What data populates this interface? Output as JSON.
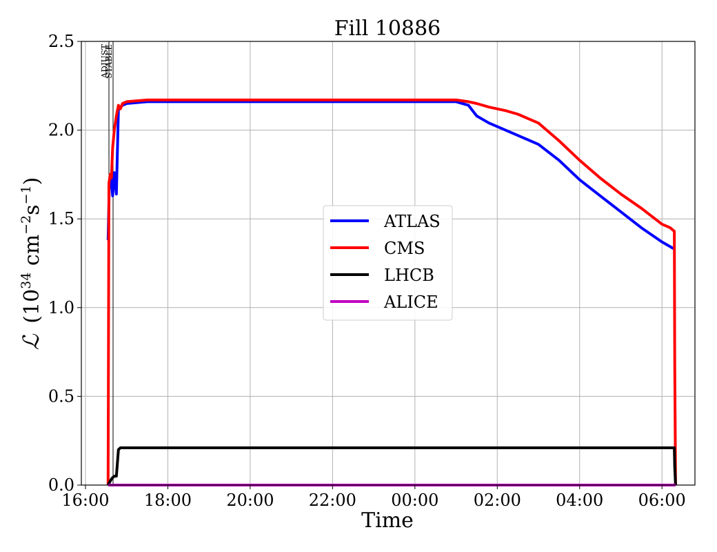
{
  "chart_data": {
    "type": "line",
    "title": "Fill 10886",
    "xlabel": "Time",
    "ylabel": "ℒ (10³⁴ cm⁻²s⁻¹)",
    "ylabel_parts": {
      "base": "(10",
      "exp1": "34",
      "mid1": " cm",
      "exp2": "−2",
      "mid2": "s",
      "exp3": "−1",
      "end": ")"
    },
    "x_unit": "hours since 16:00 (axis labeled by clock time)",
    "xlim": [
      -0.1,
      14.8
    ],
    "ylim": [
      0,
      2.5
    ],
    "x_ticks": [
      {
        "value": 0,
        "label": "16:00"
      },
      {
        "value": 2,
        "label": "18:00"
      },
      {
        "value": 4,
        "label": "20:00"
      },
      {
        "value": 6,
        "label": "22:00"
      },
      {
        "value": 8,
        "label": "00:00"
      },
      {
        "value": 10,
        "label": "02:00"
      },
      {
        "value": 12,
        "label": "04:00"
      },
      {
        "value": 14,
        "label": "06:00"
      }
    ],
    "y_ticks": [
      {
        "value": 0,
        "label": "0.0"
      },
      {
        "value": 0.5,
        "label": "0.5"
      },
      {
        "value": 1.0,
        "label": "1.0"
      },
      {
        "value": 1.5,
        "label": "1.5"
      },
      {
        "value": 2.0,
        "label": "2.0"
      },
      {
        "value": 2.5,
        "label": "2.5"
      }
    ],
    "grid": true,
    "legend_position": "center-right",
    "markers": [
      {
        "x": 0.57,
        "label": "ADJUST"
      },
      {
        "x": 0.67,
        "label": "STABLE"
      }
    ],
    "series": [
      {
        "name": "ATLAS",
        "color": "#0000ff",
        "x": [
          0.55,
          0.58,
          0.6,
          0.63,
          0.66,
          0.7,
          0.75,
          0.8,
          0.85,
          0.9,
          1.0,
          1.5,
          2.0,
          3.0,
          4.0,
          5.0,
          6.0,
          7.0,
          8.0,
          8.7,
          9.0,
          9.3,
          9.5,
          9.8,
          10.2,
          10.5,
          11.0,
          11.5,
          12.0,
          12.5,
          13.0,
          13.5,
          14.0,
          14.3
        ],
        "y": [
          1.38,
          1.7,
          1.75,
          1.72,
          1.63,
          1.76,
          1.64,
          2.12,
          2.13,
          2.14,
          2.15,
          2.16,
          2.16,
          2.16,
          2.16,
          2.16,
          2.16,
          2.16,
          2.16,
          2.16,
          2.16,
          2.14,
          2.08,
          2.04,
          2.0,
          1.97,
          1.92,
          1.83,
          1.72,
          1.63,
          1.54,
          1.45,
          1.37,
          1.33
        ]
      },
      {
        "name": "CMS",
        "color": "#ff0000",
        "x": [
          0.55,
          0.57,
          0.6,
          0.63,
          0.66,
          0.7,
          0.75,
          0.8,
          0.85,
          0.9,
          1.0,
          1.5,
          2.0,
          3.0,
          4.0,
          5.0,
          6.0,
          7.0,
          8.0,
          8.7,
          9.0,
          9.3,
          9.5,
          9.8,
          10.2,
          10.5,
          11.0,
          11.5,
          12.0,
          12.5,
          13.0,
          13.5,
          14.0,
          14.2,
          14.3,
          14.31,
          14.33
        ],
        "y": [
          0.0,
          1.7,
          1.75,
          1.73,
          1.9,
          2.0,
          2.08,
          2.14,
          2.12,
          2.15,
          2.16,
          2.17,
          2.17,
          2.17,
          2.17,
          2.17,
          2.17,
          2.17,
          2.17,
          2.17,
          2.17,
          2.16,
          2.15,
          2.13,
          2.11,
          2.09,
          2.04,
          1.94,
          1.83,
          1.73,
          1.64,
          1.56,
          1.47,
          1.45,
          1.43,
          0.7,
          0.0
        ]
      },
      {
        "name": "LHCB",
        "color": "#000000",
        "x": [
          0.55,
          0.62,
          0.65,
          0.7,
          0.75,
          0.8,
          0.85,
          1.0,
          2.0,
          4.0,
          6.0,
          8.0,
          10.0,
          12.0,
          14.0,
          14.3,
          14.31,
          14.33
        ],
        "y": [
          0.0,
          0.03,
          0.04,
          0.05,
          0.05,
          0.2,
          0.21,
          0.21,
          0.21,
          0.21,
          0.21,
          0.21,
          0.21,
          0.21,
          0.21,
          0.21,
          0.1,
          0.0
        ]
      },
      {
        "name": "ALICE",
        "color": "#bf00bf",
        "x": [
          0.55,
          14.33
        ],
        "y": [
          0.0,
          0.0
        ]
      }
    ]
  }
}
